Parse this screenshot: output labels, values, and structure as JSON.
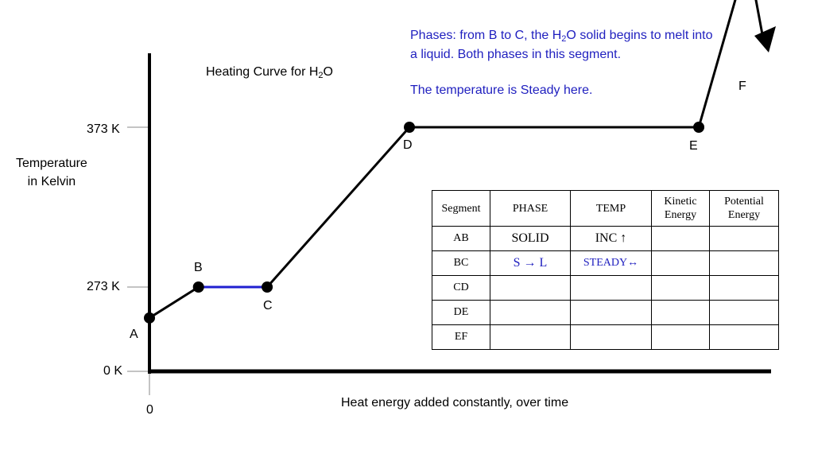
{
  "chart_data": {
    "type": "line",
    "title_prefix": "Heating Curve for H",
    "title_sub": "2",
    "title_suffix": "O",
    "ylabel_line1": "Temperature",
    "ylabel_line2": "in Kelvin",
    "xlabel": "Heat energy added constantly, over time",
    "y_ticks": [
      {
        "label": "0 K",
        "value": 0
      },
      {
        "label": "273 K",
        "value": 273
      },
      {
        "label": "373 K",
        "value": 373
      }
    ],
    "x_tick_label": "0",
    "points": [
      {
        "label": "A",
        "x": 0,
        "y": 173
      },
      {
        "label": "B",
        "x": 1,
        "y": 273
      },
      {
        "label": "C",
        "x": 2.4,
        "y": 273
      },
      {
        "label": "D",
        "x": 5.3,
        "y": 373
      },
      {
        "label": "E",
        "x": 11.2,
        "y": 373
      },
      {
        "label": "F",
        "x": 12.2,
        "y": 480
      }
    ],
    "arrow_end": {
      "x": 12.7,
      "y": 545
    },
    "highlight_segment": "BC",
    "colors": {
      "line": "#000000",
      "highlight": "#1f1fd0",
      "note": "#1f1fbf"
    }
  },
  "notes": {
    "line1_prefix": "Phases:  from B to C, the H",
    "line1_sub": "2",
    "line1_suffix": "O solid begins to melt into",
    "line2": "a liquid.  Both phases in this segment.",
    "line3": "The temperature is Steady here."
  },
  "table": {
    "headers": [
      "Segment",
      "PHASE",
      "TEMP",
      "Kinetic Energy",
      "Potential Energy"
    ],
    "rows": [
      {
        "segment": "AB",
        "phase": "SOLID",
        "temp": "INC ↑",
        "kinetic": "",
        "potential": ""
      },
      {
        "segment": "BC",
        "phase": "S → L",
        "temp": "STEADY↔",
        "kinetic": "",
        "potential": ""
      },
      {
        "segment": "CD",
        "phase": "",
        "temp": "",
        "kinetic": "",
        "potential": ""
      },
      {
        "segment": "DE",
        "phase": "",
        "temp": "",
        "kinetic": "",
        "potential": ""
      },
      {
        "segment": "EF",
        "phase": "",
        "temp": "",
        "kinetic": "",
        "potential": ""
      }
    ]
  }
}
